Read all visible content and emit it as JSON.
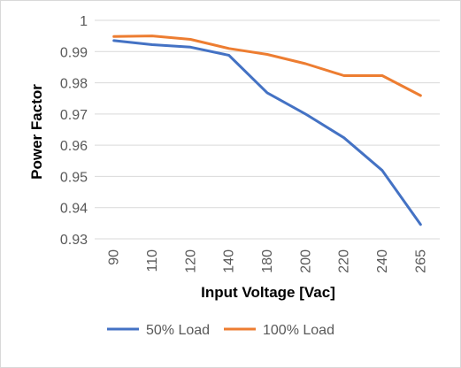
{
  "chart_data": {
    "type": "line",
    "title": "",
    "xlabel": "Input Voltage [Vac]",
    "ylabel": "Power Factor",
    "categories": [
      "90",
      "110",
      "120",
      "140",
      "180",
      "200",
      "220",
      "240",
      "265"
    ],
    "ylim": [
      0.93,
      1.0
    ],
    "yticks": [
      "0.93",
      "0.94",
      "0.95",
      "0.96",
      "0.97",
      "0.98",
      "0.99",
      "1"
    ],
    "grid": true,
    "legend_position": "bottom",
    "series": [
      {
        "name": "50% Load",
        "color": "#4472C4",
        "values": [
          0.9935,
          0.9922,
          0.9914,
          0.9888,
          0.9768,
          0.97,
          0.9624,
          0.9519,
          0.9346
        ]
      },
      {
        "name": "100% Load",
        "color": "#ED7D31",
        "values": [
          0.9948,
          0.995,
          0.9939,
          0.991,
          0.9891,
          0.9861,
          0.9823,
          0.9823,
          0.9759
        ]
      }
    ]
  }
}
